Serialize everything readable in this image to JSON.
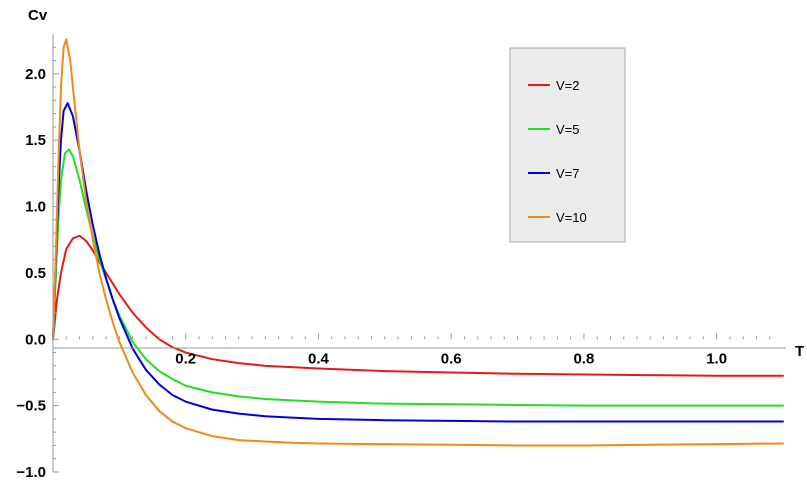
{
  "chart_data": {
    "type": "line",
    "title": "",
    "xlabel": "T",
    "ylabel": "Cv",
    "xlim": [
      0,
      1.1
    ],
    "ylim": [
      -1.0,
      2.3
    ],
    "xticks": [
      0.2,
      0.4,
      0.6,
      0.8,
      1.0
    ],
    "xtick_labels": [
      "0.2",
      "0.4",
      "0.6",
      "0.8",
      "1.0"
    ],
    "yticks": [
      -1.0,
      -0.5,
      0.0,
      0.5,
      1.0,
      1.5,
      2.0
    ],
    "ytick_labels": [
      "−1.0",
      "−0.5",
      "0.0",
      "0.5",
      "1.0",
      "1.5",
      "2.0"
    ],
    "grid": false,
    "legend": {
      "position": "top-right"
    },
    "series": [
      {
        "name": "V=2",
        "color": "#e31a1c",
        "x": [
          0.0,
          0.006,
          0.012,
          0.02,
          0.03,
          0.04,
          0.05,
          0.06,
          0.07,
          0.08,
          0.09,
          0.1,
          0.12,
          0.14,
          0.16,
          0.18,
          0.2,
          0.24,
          0.28,
          0.32,
          0.36,
          0.4,
          0.5,
          0.6,
          0.7,
          0.8,
          0.9,
          1.0,
          1.1
        ],
        "y": [
          0.0,
          0.3,
          0.5,
          0.68,
          0.76,
          0.78,
          0.74,
          0.67,
          0.58,
          0.5,
          0.42,
          0.34,
          0.2,
          0.09,
          0.0,
          -0.06,
          -0.1,
          -0.15,
          -0.18,
          -0.2,
          -0.21,
          -0.22,
          -0.24,
          -0.25,
          -0.26,
          -0.265,
          -0.27,
          -0.275,
          -0.275
        ]
      },
      {
        "name": "V=5",
        "color": "#22dd22",
        "x": [
          0.0,
          0.004,
          0.008,
          0.012,
          0.018,
          0.024,
          0.03,
          0.04,
          0.05,
          0.06,
          0.07,
          0.08,
          0.09,
          0.1,
          0.12,
          0.14,
          0.16,
          0.18,
          0.2,
          0.24,
          0.28,
          0.32,
          0.36,
          0.4,
          0.5,
          0.6,
          0.7,
          0.8,
          0.9,
          1.0,
          1.1
        ],
        "y": [
          0.0,
          0.45,
          0.9,
          1.2,
          1.4,
          1.43,
          1.38,
          1.2,
          0.98,
          0.78,
          0.6,
          0.45,
          0.3,
          0.18,
          -0.02,
          -0.15,
          -0.24,
          -0.3,
          -0.35,
          -0.4,
          -0.43,
          -0.45,
          -0.46,
          -0.47,
          -0.485,
          -0.49,
          -0.495,
          -0.5,
          -0.5,
          -0.5,
          -0.5
        ]
      },
      {
        "name": "V=7",
        "color": "#0000dd",
        "x": [
          0.0,
          0.004,
          0.008,
          0.012,
          0.016,
          0.022,
          0.03,
          0.04,
          0.05,
          0.06,
          0.07,
          0.08,
          0.09,
          0.1,
          0.12,
          0.14,
          0.16,
          0.18,
          0.2,
          0.24,
          0.28,
          0.32,
          0.36,
          0.4,
          0.5,
          0.6,
          0.7,
          0.8,
          0.9,
          1.0,
          1.1
        ],
        "y": [
          0.0,
          0.55,
          1.1,
          1.5,
          1.72,
          1.78,
          1.68,
          1.42,
          1.12,
          0.86,
          0.64,
          0.46,
          0.3,
          0.16,
          -0.07,
          -0.23,
          -0.34,
          -0.42,
          -0.47,
          -0.53,
          -0.56,
          -0.58,
          -0.59,
          -0.6,
          -0.61,
          -0.615,
          -0.62,
          -0.62,
          -0.62,
          -0.62,
          -0.62
        ]
      },
      {
        "name": "V=10",
        "color": "#f08a1a",
        "x": [
          0.0,
          0.004,
          0.008,
          0.012,
          0.016,
          0.02,
          0.026,
          0.032,
          0.04,
          0.05,
          0.06,
          0.07,
          0.08,
          0.09,
          0.1,
          0.12,
          0.14,
          0.16,
          0.18,
          0.2,
          0.24,
          0.28,
          0.32,
          0.36,
          0.4,
          0.5,
          0.6,
          0.7,
          0.8,
          0.9,
          1.0,
          1.1
        ],
        "y": [
          0.0,
          0.6,
          1.3,
          1.9,
          2.2,
          2.26,
          2.1,
          1.8,
          1.42,
          1.04,
          0.75,
          0.5,
          0.3,
          0.13,
          -0.02,
          -0.25,
          -0.42,
          -0.54,
          -0.62,
          -0.67,
          -0.73,
          -0.76,
          -0.77,
          -0.78,
          -0.785,
          -0.79,
          -0.795,
          -0.8,
          -0.8,
          -0.795,
          -0.79,
          -0.785
        ]
      }
    ]
  }
}
